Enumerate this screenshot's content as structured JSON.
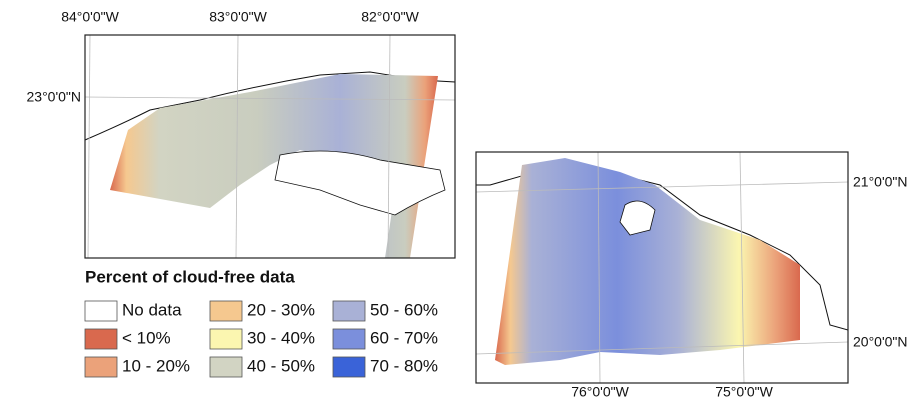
{
  "maps": [
    {
      "top_labels": [
        "84°0'0\"W",
        "83°0'0\"W",
        "82°0'0\"W"
      ],
      "left_labels": [
        "23°0'0\"N"
      ]
    },
    {
      "bottom_labels": [
        "76°0'0\"W",
        "75°0'0\"W"
      ],
      "right_labels": [
        "21°0'0\"N",
        "20°0'0\"N"
      ]
    }
  ],
  "legend": {
    "title": "Percent of cloud-free data",
    "items": [
      {
        "label": "No data",
        "color": "#ffffff"
      },
      {
        "label": "< 10%",
        "color": "#d9694e"
      },
      {
        "label": "10 - 20%",
        "color": "#eba27a"
      },
      {
        "label": "20 - 30%",
        "color": "#f5c88f"
      },
      {
        "label": "30 - 40%",
        "color": "#fbf6b0"
      },
      {
        "label": "40 - 50%",
        "color": "#d2d4c3"
      },
      {
        "label": "50 - 60%",
        "color": "#a9b1d6"
      },
      {
        "label": "60 - 70%",
        "color": "#7b8fdc"
      },
      {
        "label": "70 - 80%",
        "color": "#3a63d8"
      }
    ]
  }
}
